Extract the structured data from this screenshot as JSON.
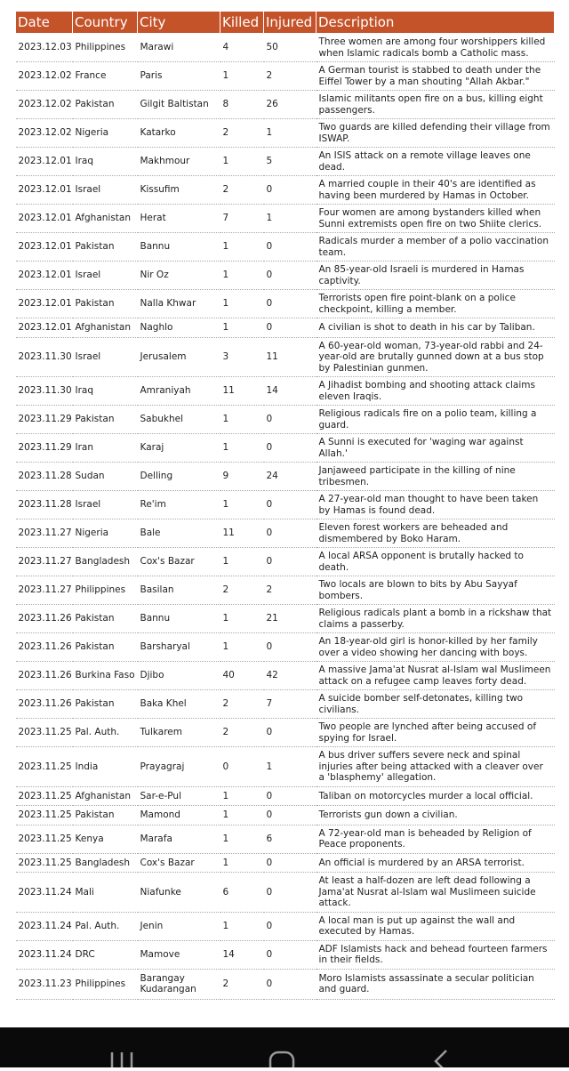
{
  "table": {
    "columns": [
      "Date",
      "Country",
      "City",
      "Killed",
      "Injured",
      "Description"
    ],
    "rows": [
      [
        "2023.12.03",
        "Philippines",
        "Marawi",
        4,
        50,
        "Three women are among four worshippers killed when Islamic radicals bomb a Catholic mass."
      ],
      [
        "2023.12.02",
        "France",
        "Paris",
        1,
        2,
        "A German tourist is stabbed to death under the Eiffel Tower by a man shouting \"Allah Akbar.\""
      ],
      [
        "2023.12.02",
        "Pakistan",
        "Gilgit Baltistan",
        8,
        26,
        "Islamic militants open fire on a bus, killing eight passengers."
      ],
      [
        "2023.12.02",
        "Nigeria",
        "Katarko",
        2,
        1,
        "Two guards are killed defending their village from ISWAP."
      ],
      [
        "2023.12.01",
        "Iraq",
        "Makhmour",
        1,
        5,
        "An ISIS attack on a remote village leaves one dead."
      ],
      [
        "2023.12.01",
        "Israel",
        "Kissufim",
        2,
        0,
        "A married couple in their 40's are identified as having been murdered by Hamas in October."
      ],
      [
        "2023.12.01",
        "Afghanistan",
        "Herat",
        7,
        1,
        "Four women are among bystanders killed when Sunni extremists open fire on two Shiite clerics."
      ],
      [
        "2023.12.01",
        "Pakistan",
        "Bannu",
        1,
        0,
        "Radicals murder a member of a polio vaccination team."
      ],
      [
        "2023.12.01",
        "Israel",
        "Nir Oz",
        1,
        0,
        "An 85-year-old Israeli is murdered in Hamas captivity."
      ],
      [
        "2023.12.01",
        "Pakistan",
        "Nalla Khwar",
        1,
        0,
        "Terrorists open fire point-blank on a police checkpoint, killing a member."
      ],
      [
        "2023.12.01",
        "Afghanistan",
        "Naghlo",
        1,
        0,
        "A civilian is shot to death in his car by Taliban."
      ],
      [
        "2023.11.30",
        "Israel",
        "Jerusalem",
        3,
        11,
        "A 60-year-old woman, 73-year-old rabbi and 24-year-old are brutally gunned down at a bus stop by Palestinian gunmen."
      ],
      [
        "2023.11.30",
        "Iraq",
        "Amraniyah",
        11,
        14,
        "A Jihadist bombing and shooting attack claims eleven Iraqis."
      ],
      [
        "2023.11.29",
        "Pakistan",
        "Sabukhel",
        1,
        0,
        "Religious radicals fire on a polio team, killing a guard."
      ],
      [
        "2023.11.29",
        "Iran",
        "Karaj",
        1,
        0,
        "A Sunni is executed for 'waging war against Allah.'"
      ],
      [
        "2023.11.28",
        "Sudan",
        "Delling",
        9,
        24,
        "Janjaweed participate in the killing of nine tribesmen."
      ],
      [
        "2023.11.28",
        "Israel",
        "Re'im",
        1,
        0,
        "A 27-year-old man thought to have been taken by Hamas is found dead."
      ],
      [
        "2023.11.27",
        "Nigeria",
        "Bale",
        11,
        0,
        "Eleven forest workers are beheaded and dismembered by Boko Haram."
      ],
      [
        "2023.11.27",
        "Bangladesh",
        "Cox's Bazar",
        1,
        0,
        "A local ARSA opponent is brutally hacked to death."
      ],
      [
        "2023.11.27",
        "Philippines",
        "Basilan",
        2,
        2,
        "Two locals are blown to bits by Abu Sayyaf bombers."
      ],
      [
        "2023.11.26",
        "Pakistan",
        "Bannu",
        1,
        21,
        "Religious radicals plant a bomb in a rickshaw that claims a passerby."
      ],
      [
        "2023.11.26",
        "Pakistan",
        "Barsharyal",
        1,
        0,
        "An 18-year-old girl is honor-killed by her family over a video showing her dancing with boys."
      ],
      [
        "2023.11.26",
        "Burkina Faso",
        "Djibo",
        40,
        42,
        "A massive Jama'at Nusrat al-Islam wal Muslimeen attack on a refugee camp leaves forty dead."
      ],
      [
        "2023.11.26",
        "Pakistan",
        "Baka Khel",
        2,
        7,
        "A suicide bomber self-detonates, killing two civilians."
      ],
      [
        "2023.11.25",
        "Pal. Auth.",
        "Tulkarem",
        2,
        0,
        "Two people are lynched after being accused of spying for Israel."
      ],
      [
        "2023.11.25",
        "India",
        "Prayagraj",
        0,
        1,
        "A bus driver suffers severe neck and spinal injuries after being attacked with a cleaver over a 'blasphemy' allegation."
      ],
      [
        "2023.11.25",
        "Afghanistan",
        "Sar-e-Pul",
        1,
        0,
        "Taliban on motorcycles murder a local official."
      ],
      [
        "2023.11.25",
        "Pakistan",
        "Mamond",
        1,
        0,
        "Terrorists gun down a civilian."
      ],
      [
        "2023.11.25",
        "Kenya",
        "Marafa",
        1,
        6,
        "A 72-year-old man is beheaded by Religion of Peace proponents."
      ],
      [
        "2023.11.25",
        "Bangladesh",
        "Cox's Bazar",
        1,
        0,
        "An official is murdered by an ARSA terrorist."
      ],
      [
        "2023.11.24",
        "Mali",
        "Niafunke",
        6,
        0,
        "At least a half-dozen are left dead following a Jama'at Nusrat al-Islam wal Muslimeen suicide attack."
      ],
      [
        "2023.11.24",
        "Pal. Auth.",
        "Jenin",
        1,
        0,
        "A local man is put up against the wall and executed by Hamas."
      ],
      [
        "2023.11.24",
        "DRC",
        "Mamove",
        14,
        0,
        "ADF Islamists hack and behead fourteen farmers in their fields."
      ],
      [
        "2023.11.23",
        "Philippines",
        "Barangay Kudarangan",
        2,
        0,
        "Moro Islamists assassinate a secular politician and guard."
      ]
    ]
  }
}
